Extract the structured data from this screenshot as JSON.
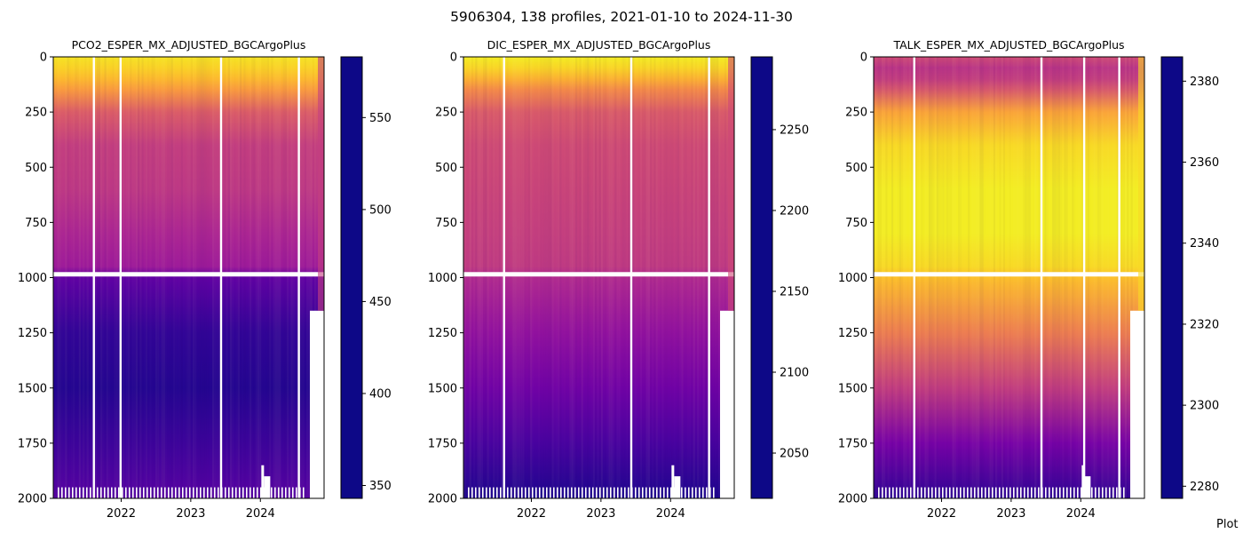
{
  "figure": {
    "title": "5906304, 138 profiles, 2021-01-10 to 2024-11-30",
    "footer": "Plot"
  },
  "chart_data": [
    {
      "type": "heatmap",
      "title": "PCO2_ESPER_MX_ADJUSTED_BGCArgoPlus",
      "xlim": [
        "2021-01-10",
        "2024-11-30"
      ],
      "ylim": [
        2000,
        0
      ],
      "y_inverted": true,
      "x_ticks": [
        "2022",
        "2023",
        "2024"
      ],
      "y_ticks": [
        0,
        250,
        500,
        750,
        1000,
        1250,
        1500,
        1750,
        2000
      ],
      "colormap": "plasma_r",
      "colorbar": {
        "range": [
          343,
          583
        ],
        "ticks": [
          350,
          400,
          450,
          500,
          550
        ]
      },
      "depth": [
        0,
        50,
        100,
        150,
        250,
        400,
        600,
        800,
        950,
        1000,
        1250,
        1500,
        1750,
        2000
      ],
      "values": [
        355,
        365,
        380,
        400,
        445,
        470,
        475,
        490,
        500,
        540,
        565,
        572,
        560,
        545
      ],
      "gap_dates": [
        "2021-08-10",
        "2021-12-28",
        "2023-06-08",
        "2024-07-20"
      ]
    },
    {
      "type": "heatmap",
      "title": "DIC_ESPER_MX_ADJUSTED_BGCArgoPlus",
      "xlim": [
        "2021-01-10",
        "2024-11-30"
      ],
      "ylim": [
        2000,
        0
      ],
      "y_inverted": true,
      "x_ticks": [
        "2022",
        "2023",
        "2024"
      ],
      "y_ticks": [
        0,
        250,
        500,
        750,
        1000,
        1250,
        1500,
        1750,
        2000
      ],
      "colormap": "plasma_r",
      "colorbar": {
        "range": [
          2022,
          2295
        ],
        "ticks": [
          2050,
          2100,
          2150,
          2200,
          2250
        ]
      },
      "depth": [
        0,
        50,
        100,
        150,
        250,
        400,
        600,
        800,
        950,
        1000,
        1250,
        1500,
        1750,
        2000
      ],
      "values": [
        2030,
        2045,
        2070,
        2100,
        2140,
        2155,
        2160,
        2165,
        2170,
        2185,
        2210,
        2235,
        2262,
        2285
      ],
      "gap_dates": [
        "2021-08-10",
        "2023-06-08",
        "2024-07-20"
      ]
    },
    {
      "type": "heatmap",
      "title": "TALK_ESPER_MX_ADJUSTED_BGCArgoPlus",
      "xlim": [
        "2021-01-10",
        "2024-11-30"
      ],
      "ylim": [
        2000,
        0
      ],
      "y_inverted": true,
      "x_ticks": [
        "2022",
        "2023",
        "2024"
      ],
      "y_ticks": [
        0,
        250,
        500,
        750,
        1000,
        1250,
        1500,
        1750,
        2000
      ],
      "colormap": "plasma_r",
      "colorbar": {
        "range": [
          2277,
          2386
        ],
        "ticks": [
          2280,
          2300,
          2320,
          2340,
          2360,
          2380
        ]
      },
      "depth": [
        0,
        50,
        100,
        150,
        250,
        400,
        600,
        800,
        950,
        1000,
        1250,
        1500,
        1750,
        2000
      ],
      "values": [
        2330,
        2338,
        2335,
        2325,
        2300,
        2285,
        2280,
        2280,
        2285,
        2292,
        2312,
        2335,
        2360,
        2378
      ],
      "gap_dates": [
        "2021-08-10",
        "2023-06-08",
        "2024-01-18",
        "2024-07-20"
      ]
    }
  ]
}
